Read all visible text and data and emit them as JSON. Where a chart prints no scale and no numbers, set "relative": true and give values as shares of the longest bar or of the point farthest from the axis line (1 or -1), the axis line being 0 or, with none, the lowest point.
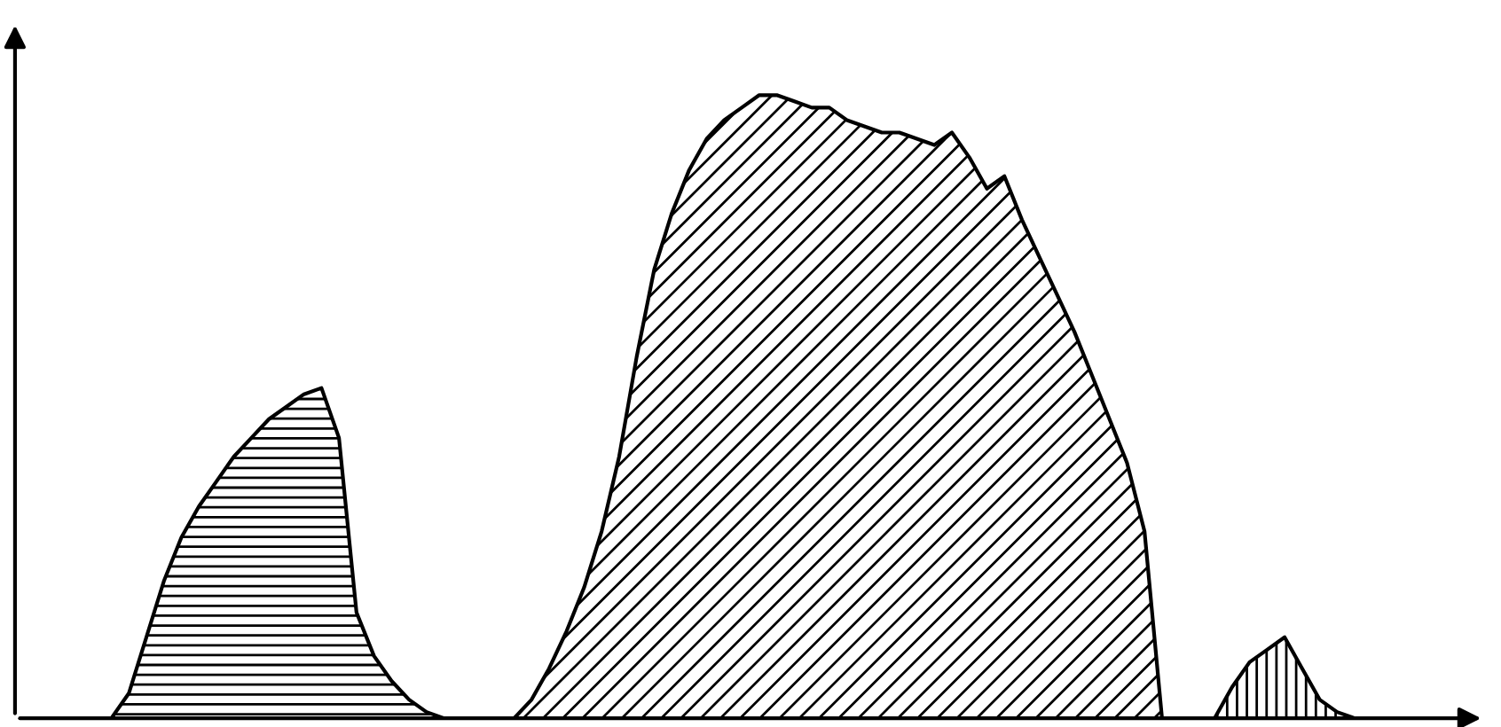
{
  "chart_data": {
    "type": "area",
    "relative": true,
    "categories": [
      null,
      null,
      null,
      null,
      null,
      null,
      null,
      null,
      null,
      null,
      null,
      null,
      null,
      null,
      null,
      null,
      null,
      null,
      null,
      null,
      null,
      null,
      null,
      null,
      null,
      null,
      null,
      null,
      null,
      null,
      null,
      null,
      null,
      null,
      null,
      null,
      null,
      null,
      null,
      null,
      null,
      null,
      null,
      null,
      null,
      null,
      null,
      null,
      null,
      null,
      null,
      null,
      null,
      null,
      null,
      null,
      null,
      null,
      null,
      null,
      null,
      null,
      null,
      null,
      null,
      null,
      null,
      null,
      null,
      null,
      null,
      null,
      null,
      null,
      null,
      null,
      null,
      null,
      null,
      null,
      null,
      null,
      null,
      null
    ],
    "series": [
      {
        "color": "#000000",
        "values": [
          null,
          null,
          null,
          null,
          null,
          0,
          0.04,
          0.13,
          0.22,
          0.29,
          0.34,
          0.38,
          0.42,
          0.45,
          0.48,
          0.5,
          0.52,
          0.53,
          0.45,
          0.17,
          0.1,
          0.06,
          0.03,
          0.01,
          0,
          null,
          null,
          null,
          null,
          null,
          null,
          null,
          null,
          null,
          null,
          null,
          null,
          null,
          null,
          null,
          null,
          null,
          null,
          null,
          null,
          null,
          null,
          null,
          null,
          null,
          null,
          null,
          null,
          null,
          null,
          null,
          null,
          null,
          null,
          null,
          null,
          null,
          null,
          null,
          null,
          null,
          null,
          null,
          null,
          null,
          null,
          null,
          null,
          null,
          null,
          null,
          null,
          null,
          null,
          null,
          null,
          null,
          null,
          null
        ]
      },
      {
        "color": "#000000",
        "values": [
          null,
          null,
          null,
          null,
          null,
          null,
          null,
          null,
          null,
          null,
          null,
          null,
          null,
          null,
          null,
          null,
          null,
          null,
          null,
          null,
          null,
          null,
          null,
          null,
          null,
          null,
          null,
          null,
          0,
          0.03,
          0.08,
          0.14,
          0.21,
          0.3,
          0.42,
          0.58,
          0.72,
          0.81,
          0.88,
          0.93,
          0.96,
          0.98,
          1,
          1,
          0.99,
          0.98,
          0.98,
          0.96,
          0.95,
          0.94,
          0.94,
          0.93,
          0.92,
          0.94,
          0.9,
          0.85,
          0.87,
          0.8,
          0.74,
          0.68,
          0.62,
          0.55,
          0.48,
          0.41,
          0.3,
          0,
          null,
          null,
          null,
          null,
          null,
          null,
          null,
          null,
          null,
          null,
          null,
          null,
          null,
          null,
          null,
          null,
          null,
          null
        ]
      },
      {
        "color": "#000000",
        "values": [
          null,
          null,
          null,
          null,
          null,
          null,
          null,
          null,
          null,
          null,
          null,
          null,
          null,
          null,
          null,
          null,
          null,
          null,
          null,
          null,
          null,
          null,
          null,
          null,
          null,
          null,
          null,
          null,
          null,
          null,
          null,
          null,
          null,
          null,
          null,
          null,
          null,
          null,
          null,
          null,
          null,
          null,
          null,
          null,
          null,
          null,
          null,
          null,
          null,
          null,
          null,
          null,
          null,
          null,
          null,
          null,
          null,
          null,
          null,
          null,
          null,
          null,
          null,
          null,
          null,
          null,
          null,
          null,
          0,
          0.05,
          0.09,
          0.11,
          0.13,
          0.08,
          0.03,
          0.01,
          0,
          null,
          null,
          null,
          null,
          null,
          null,
          null
        ]
      }
    ]
  }
}
